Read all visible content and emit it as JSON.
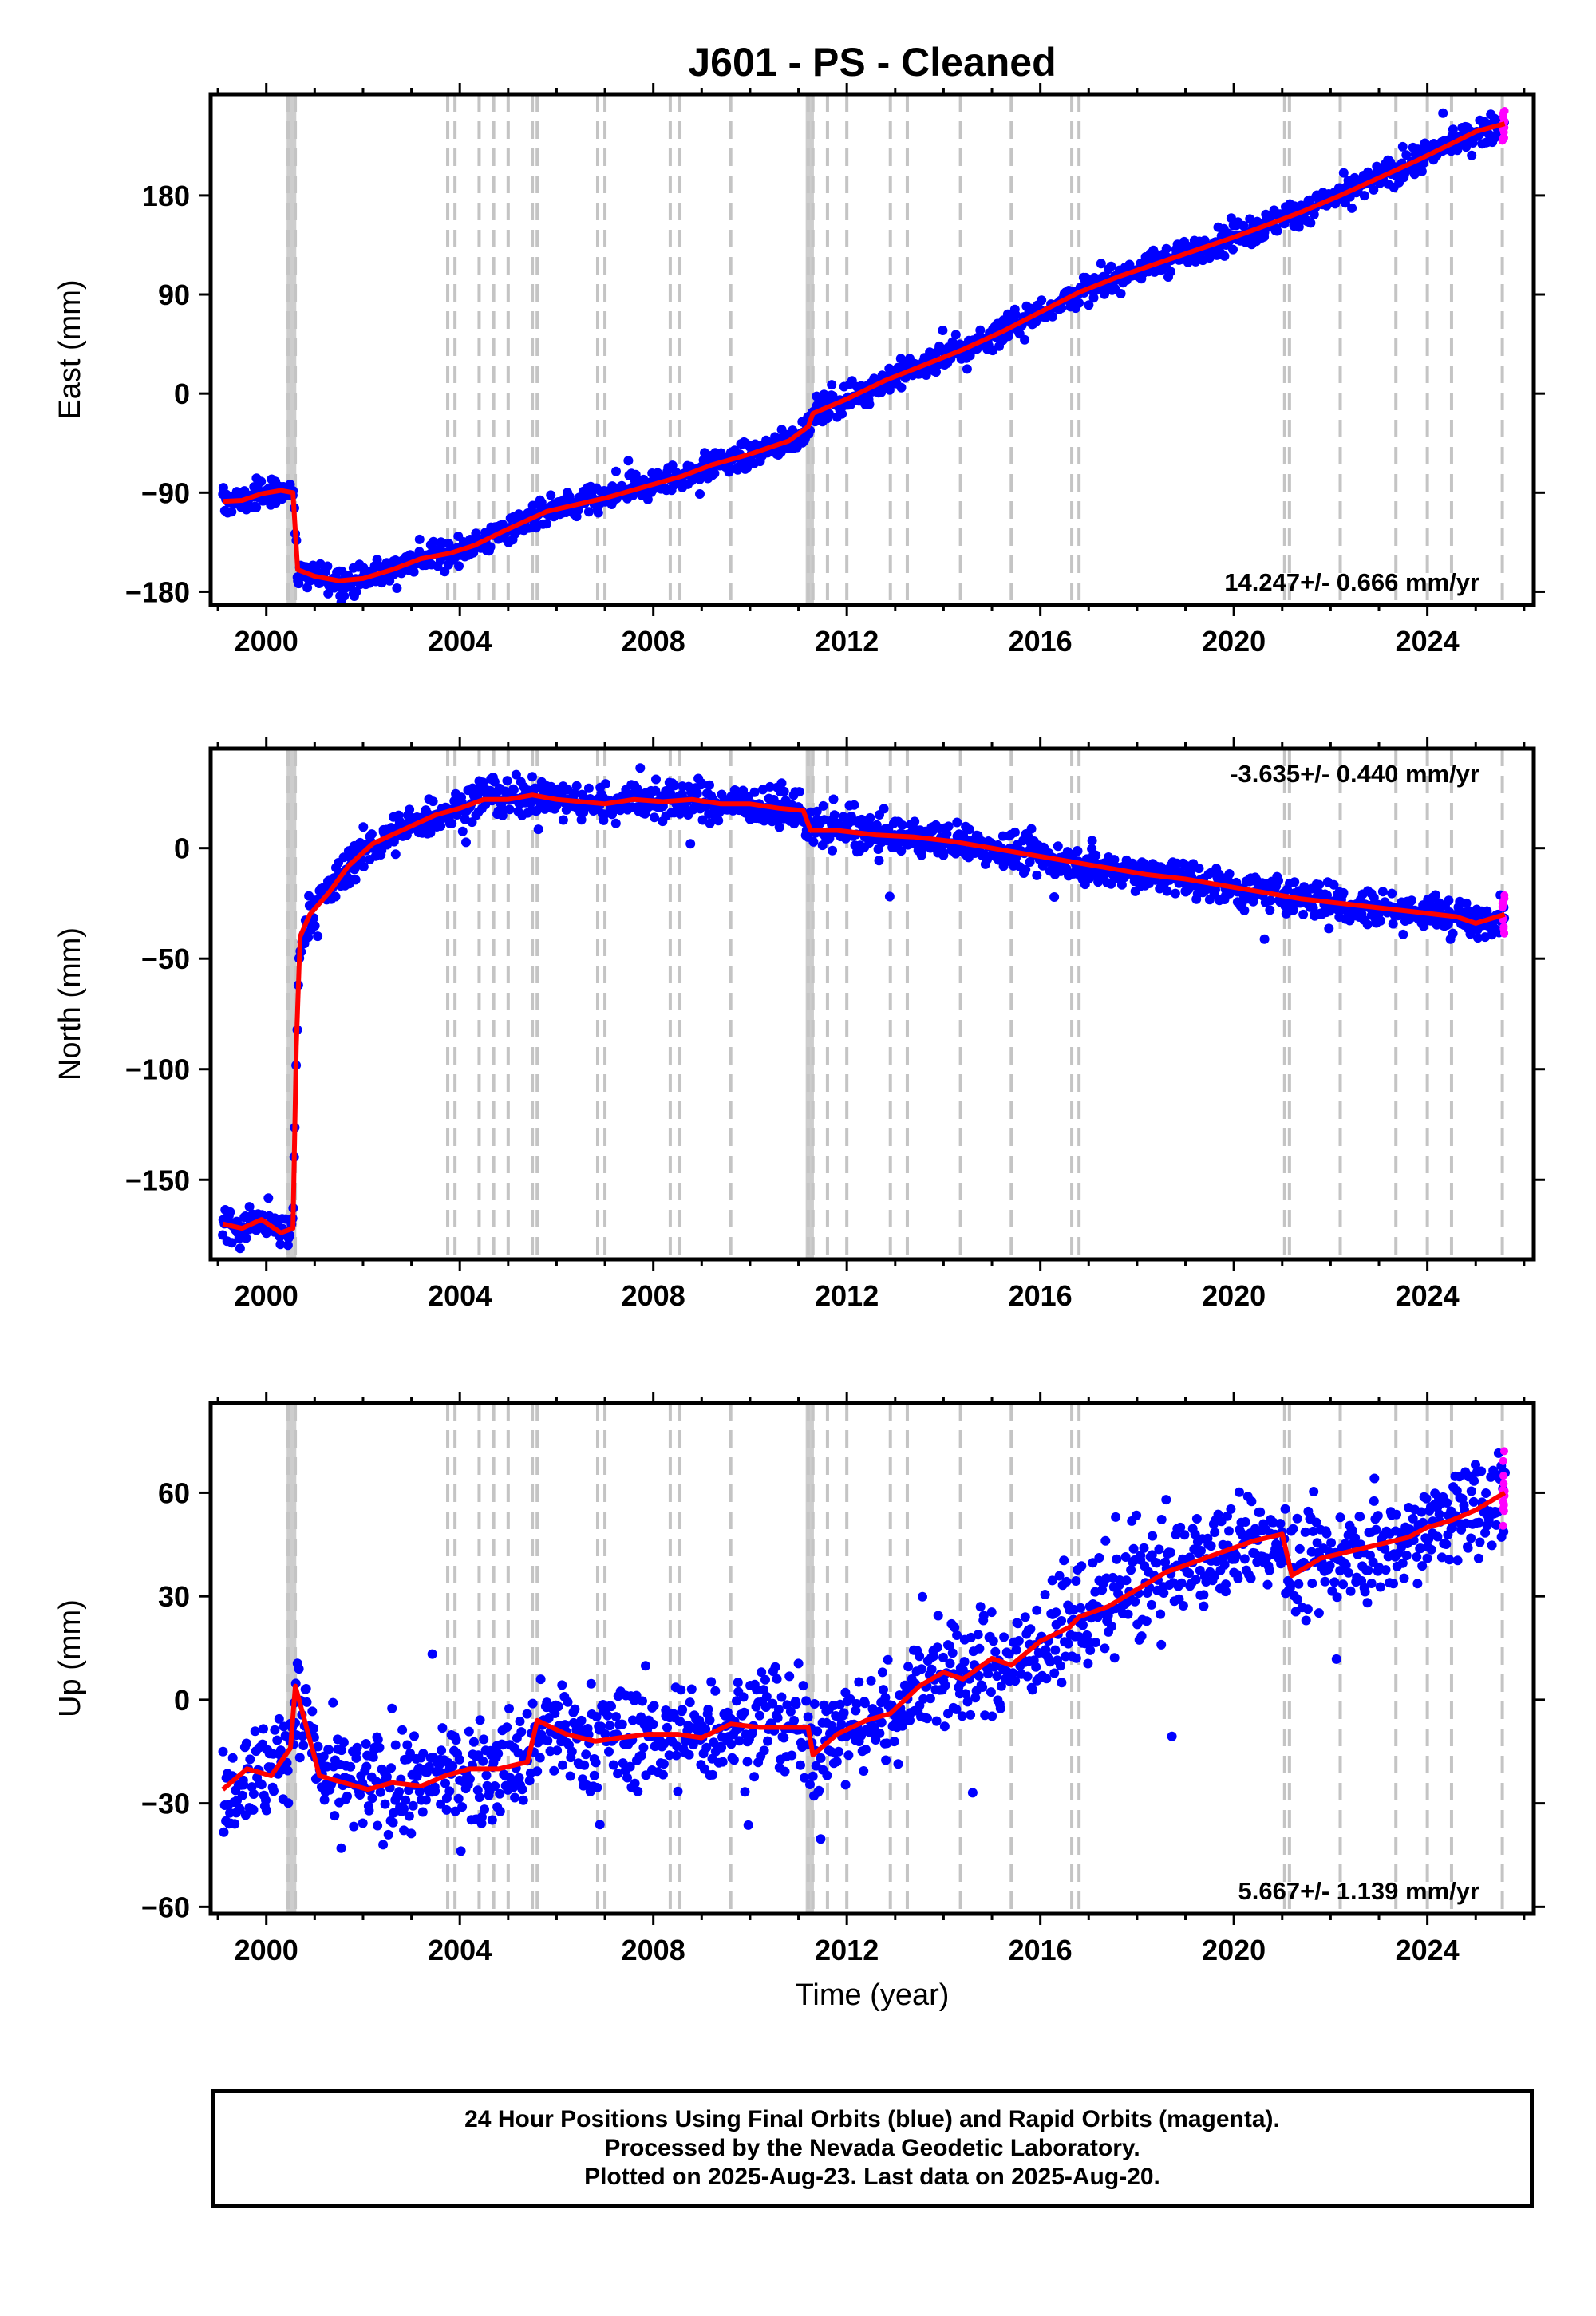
{
  "title": "J601  - PS - Cleaned",
  "xlabel": "Time (year)",
  "colors": {
    "final_orbits": "#0000ff",
    "rapid_orbits": "#ff00ff",
    "model": "#ff0000",
    "event_lines": "#c4c4c4"
  },
  "footer": {
    "line1": "24 Hour Positions Using Final Orbits (blue) and Rapid Orbits (magenta).",
    "line2": "Processed by the Nevada Geodetic Laboratory.",
    "line3": "Plotted on 2025-Aug-23. Last data on 2025-Aug-20."
  },
  "chart_data": [
    {
      "type": "scatter",
      "ylabel": "East (mm)",
      "rate_label": "14.247+/- 0.666 mm/yr",
      "xlim": [
        1998.85,
        2026.2
      ],
      "ylim": [
        -192,
        272
      ],
      "xticks": [
        2000,
        2004,
        2008,
        2012,
        2016,
        2020,
        2024
      ],
      "yticks": [
        -180,
        -90,
        0,
        90,
        180
      ],
      "ytick_labels": [
        "−180",
        "−90",
        "0",
        "90",
        "180"
      ],
      "event_lines": [
        2000.45,
        2000.6,
        2003.75,
        2003.9,
        2004.4,
        2004.7,
        2005.0,
        2005.5,
        2005.6,
        2006.85,
        2007.0,
        2008.35,
        2008.55,
        2009.6,
        2011.2,
        2011.3,
        2011.6,
        2012.0,
        2012.9,
        2013.25,
        2014.35,
        2015.4,
        2016.65,
        2016.8,
        2021.05,
        2021.15,
        2022.2,
        2023.35,
        2024.0,
        2024.5,
        2025.55
      ],
      "event_bands": [
        [
          2000.42,
          2000.62
        ],
        [
          2011.15,
          2011.32
        ]
      ],
      "series": [
        {
          "name": "model",
          "x": [
            1999.1,
            1999.5,
            1999.9,
            2000.3,
            2000.55,
            2000.65,
            2001.0,
            2001.5,
            2002.0,
            2002.6,
            2003.2,
            2003.8,
            2004.3,
            2004.9,
            2005.4,
            2005.8,
            2006.5,
            2007.0,
            2007.8,
            2008.6,
            2009.2,
            2010.0,
            2010.8,
            2011.2,
            2011.3,
            2012.0,
            2012.8,
            2013.6,
            2014.4,
            2015.2,
            2016.0,
            2016.8,
            2017.6,
            2018.4,
            2019.2,
            2020.0,
            2020.8,
            2021.4,
            2022.2,
            2023.0,
            2023.8,
            2024.5,
            2025.0,
            2025.6
          ],
          "y": [
            -98,
            -97,
            -91,
            -88,
            -90,
            -160,
            -166,
            -170,
            -168,
            -160,
            -150,
            -145,
            -138,
            -125,
            -115,
            -107,
            -100,
            -95,
            -85,
            -75,
            -65,
            -55,
            -43,
            -30,
            -18,
            -5,
            12,
            26,
            40,
            56,
            74,
            92,
            106,
            118,
            130,
            142,
            155,
            165,
            180,
            196,
            212,
            227,
            238,
            245
          ]
        }
      ],
      "point_band_mm": 12
    },
    {
      "type": "scatter",
      "ylabel": "North (mm)",
      "rate_label": "-3.635+/- 0.440 mm/yr",
      "xlim": [
        1998.85,
        2026.2
      ],
      "ylim": [
        -186,
        45
      ],
      "xticks": [
        2000,
        2004,
        2008,
        2012,
        2016,
        2020,
        2024
      ],
      "yticks": [
        -150,
        -100,
        -50,
        0
      ],
      "ytick_labels": [
        "−150",
        "−100",
        "−50",
        "0"
      ],
      "event_lines": [
        2000.45,
        2000.6,
        2003.75,
        2003.9,
        2004.4,
        2004.7,
        2005.0,
        2005.5,
        2005.6,
        2006.85,
        2007.0,
        2008.35,
        2008.55,
        2009.6,
        2011.2,
        2011.3,
        2011.6,
        2012.0,
        2012.9,
        2013.25,
        2014.35,
        2015.4,
        2016.65,
        2016.8,
        2021.05,
        2021.15,
        2022.2,
        2023.35,
        2024.0,
        2024.5,
        2025.55
      ],
      "event_bands": [
        [
          2000.42,
          2000.62
        ],
        [
          2011.15,
          2011.32
        ]
      ],
      "series": [
        {
          "name": "model",
          "x": [
            1999.1,
            1999.5,
            1999.9,
            2000.3,
            2000.55,
            2000.62,
            2000.7,
            2000.9,
            2001.3,
            2001.7,
            2002.2,
            2002.8,
            2003.5,
            2004.0,
            2004.5,
            2005.0,
            2005.5,
            2006.0,
            2006.5,
            2007.0,
            2007.6,
            2008.2,
            2008.8,
            2009.4,
            2010.0,
            2010.6,
            2011.1,
            2011.25,
            2011.8,
            2012.6,
            2013.4,
            2014.2,
            2015.0,
            2015.8,
            2016.6,
            2017.4,
            2018.2,
            2019.0,
            2019.8,
            2020.6,
            2021.4,
            2022.2,
            2023.0,
            2023.8,
            2024.6,
            2025.0,
            2025.6
          ],
          "y": [
            -170,
            -172,
            -168,
            -174,
            -172,
            -90,
            -40,
            -30,
            -20,
            -8,
            2,
            8,
            15,
            18,
            22,
            22,
            24,
            22,
            21,
            20,
            22,
            21,
            22,
            20,
            20,
            18,
            17,
            8,
            8,
            6,
            5,
            3,
            0,
            -3,
            -6,
            -9,
            -12,
            -14,
            -17,
            -20,
            -23,
            -25,
            -27,
            -29,
            -31,
            -34,
            -30
          ]
        }
      ],
      "point_band_mm": 8
    },
    {
      "type": "scatter",
      "ylabel": "Up (mm)",
      "rate_label": "5.667+/- 1.139 mm/yr",
      "xlim": [
        1998.85,
        2026.2
      ],
      "ylim": [
        -62,
        86
      ],
      "xticks": [
        2000,
        2004,
        2008,
        2012,
        2016,
        2020,
        2024
      ],
      "yticks": [
        -60,
        -30,
        0,
        30,
        60
      ],
      "ytick_labels": [
        "−60",
        "−30",
        "0",
        "30",
        "60"
      ],
      "event_lines": [
        2000.45,
        2000.6,
        2003.75,
        2003.9,
        2004.4,
        2004.7,
        2005.0,
        2005.5,
        2005.6,
        2006.85,
        2007.0,
        2008.35,
        2008.55,
        2009.6,
        2011.2,
        2011.3,
        2011.6,
        2012.0,
        2012.9,
        2013.25,
        2014.35,
        2015.4,
        2016.65,
        2016.8,
        2021.05,
        2021.15,
        2022.2,
        2023.35,
        2024.0,
        2024.5,
        2025.55
      ],
      "event_bands": [
        [
          2000.42,
          2000.62
        ],
        [
          2011.15,
          2011.32
        ]
      ],
      "series": [
        {
          "name": "model",
          "x": [
            1999.1,
            1999.6,
            2000.1,
            2000.5,
            2000.6,
            2001.1,
            2001.6,
            2002.1,
            2002.6,
            2003.2,
            2003.7,
            2004.2,
            2004.8,
            2005.4,
            2005.6,
            2006.2,
            2006.8,
            2007.3,
            2007.9,
            2008.5,
            2009.0,
            2009.6,
            2010.2,
            2010.8,
            2011.2,
            2011.3,
            2011.8,
            2012.4,
            2012.9,
            2013.5,
            2014.0,
            2014.4,
            2015.0,
            2015.4,
            2016.0,
            2016.6,
            2016.8,
            2017.4,
            2018.0,
            2018.6,
            2019.2,
            2019.8,
            2020.4,
            2021.0,
            2021.2,
            2021.8,
            2022.4,
            2023.0,
            2023.6,
            2024.0,
            2024.5,
            2025.0,
            2025.6
          ],
          "y": [
            -26,
            -20,
            -22,
            -14,
            4,
            -22,
            -24,
            -26,
            -24,
            -25,
            -22,
            -20,
            -20,
            -18,
            -6,
            -10,
            -12,
            -11,
            -10,
            -10,
            -11,
            -7,
            -8,
            -8,
            -8,
            -16,
            -10,
            -6,
            -4,
            4,
            8,
            6,
            12,
            10,
            17,
            21,
            24,
            27,
            32,
            37,
            40,
            43,
            46,
            48,
            36,
            41,
            43,
            45,
            47,
            50,
            52,
            55,
            60
          ]
        }
      ],
      "point_band_mm": 14
    }
  ]
}
